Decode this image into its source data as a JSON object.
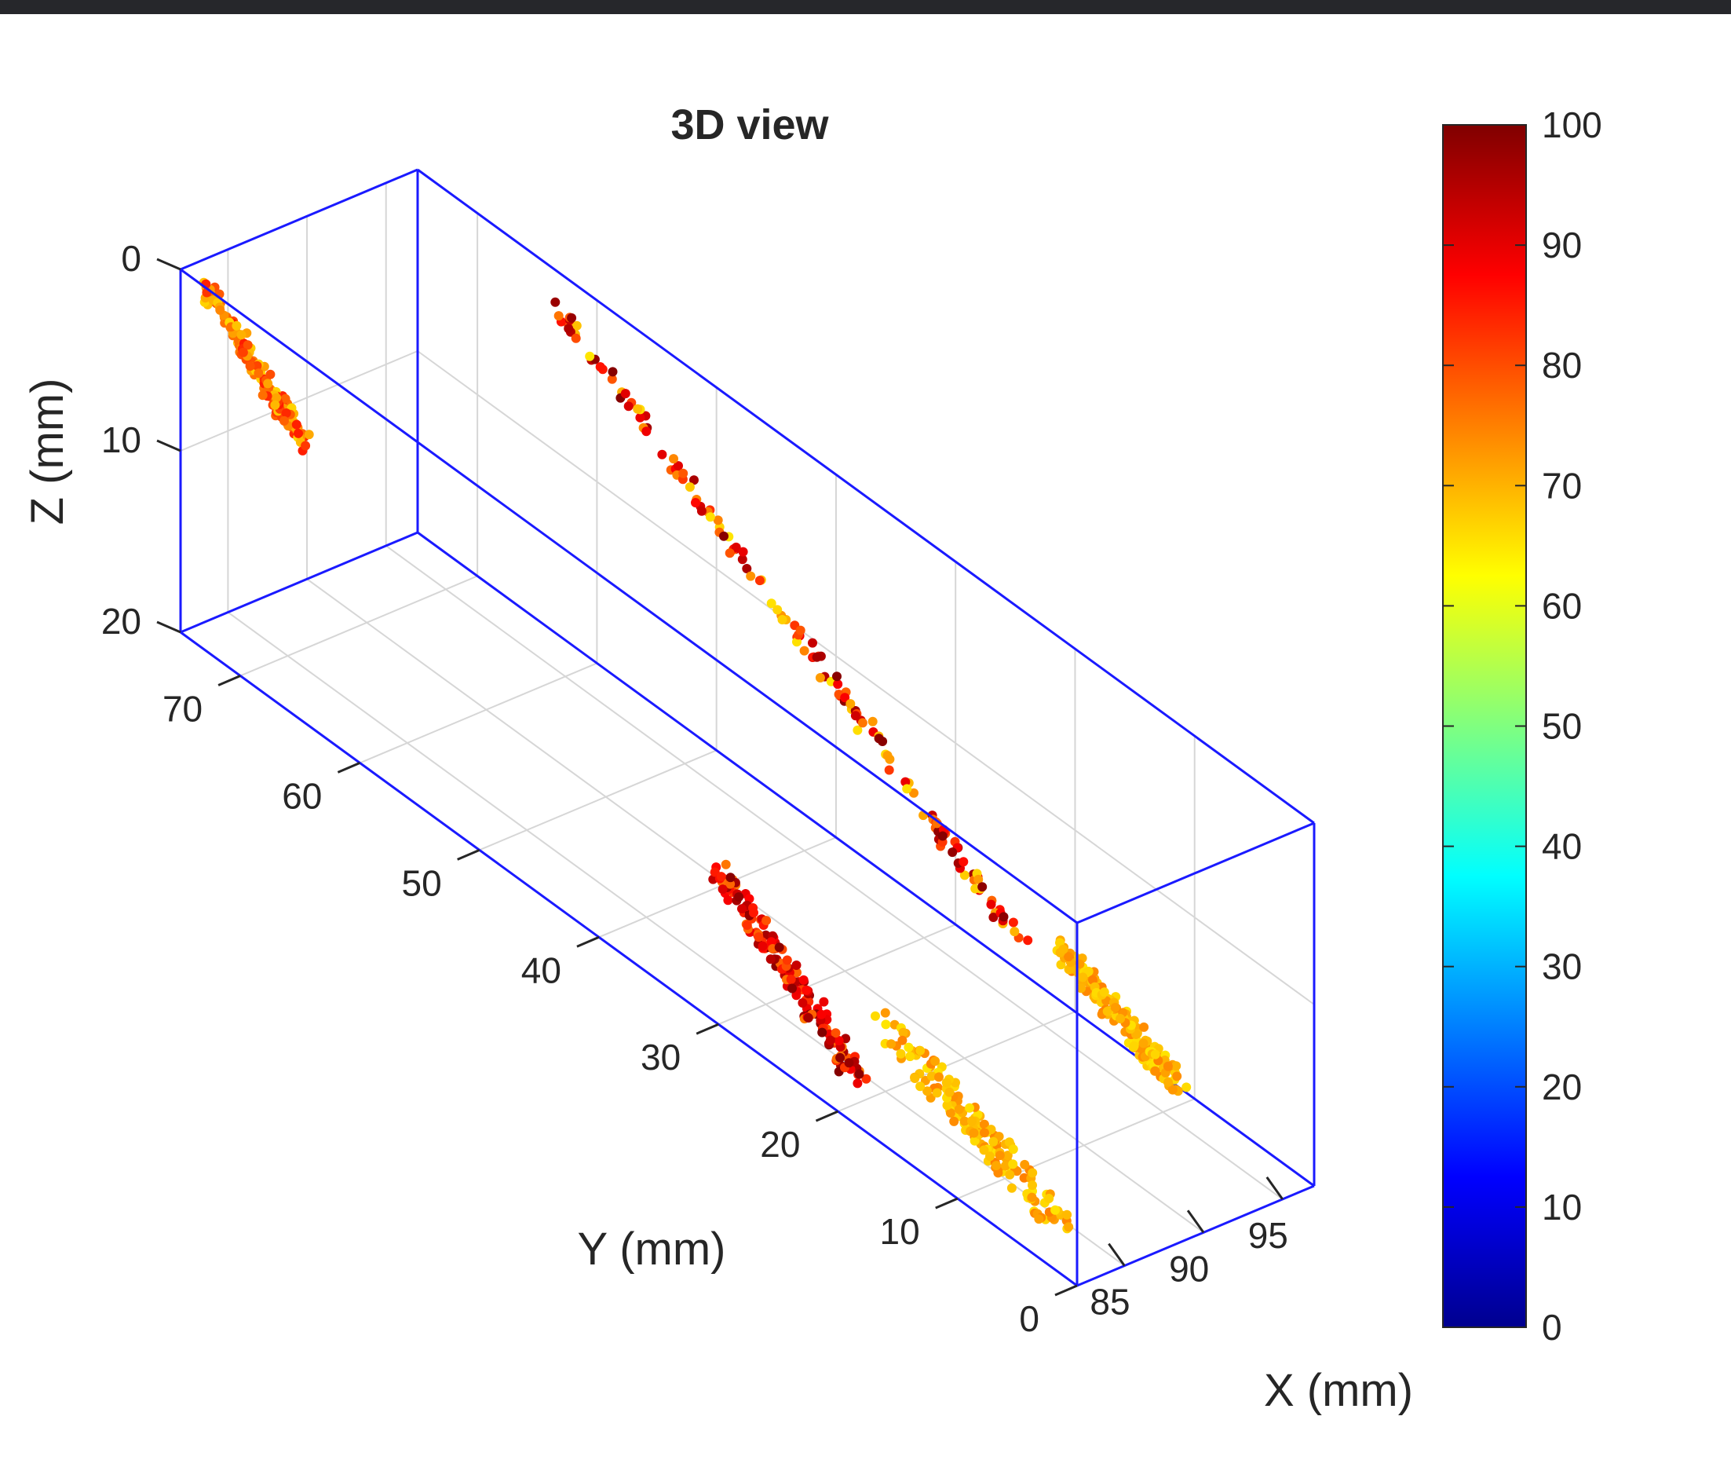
{
  "chart_data": {
    "type": "scatter",
    "title": "3D view",
    "xlabel": "X (mm)",
    "ylabel": "Y (mm)",
    "zlabel": "Z (mm)",
    "xlim": [
      82,
      97
    ],
    "ylim": [
      0,
      75
    ],
    "zlim": [
      0,
      20
    ],
    "z_direction": "reverse",
    "grid": true,
    "box_color": "#1a1aff",
    "x_ticks": [
      85,
      90,
      95
    ],
    "y_ticks": [
      0,
      10,
      20,
      30,
      40,
      50,
      60,
      70
    ],
    "z_ticks": [
      0,
      10,
      20
    ],
    "colorbar": {
      "colormap": "jet",
      "limits": [
        0,
        100
      ],
      "ticks": [
        0,
        10,
        20,
        30,
        40,
        50,
        60,
        70,
        80,
        90,
        100
      ],
      "placement": "right"
    },
    "clusters": [
      {
        "x": [
          82,
          82.5
        ],
        "y": [
          73,
          65
        ],
        "z": [
          0.3,
          5
        ],
        "value_range": [
          66,
          85
        ]
      },
      {
        "x": [
          95.5,
          96
        ],
        "y": [
          62,
          23
        ],
        "z": [
          0.5,
          17
        ],
        "value_range": [
          65,
          100
        ]
      },
      {
        "x": [
          95.5,
          96.5
        ],
        "y": [
          20,
          10
        ],
        "z": [
          16,
          19
        ],
        "value_range": [
          65,
          75
        ]
      },
      {
        "x": [
          83,
          84
        ],
        "y": [
          32,
          20
        ],
        "z": [
          13,
          19
        ],
        "value_range": [
          75,
          100
        ]
      },
      {
        "x": [
          84,
          85.5
        ],
        "y": [
          20,
          5
        ],
        "z": [
          16,
          20
        ],
        "value_range": [
          65,
          75
        ]
      }
    ]
  }
}
